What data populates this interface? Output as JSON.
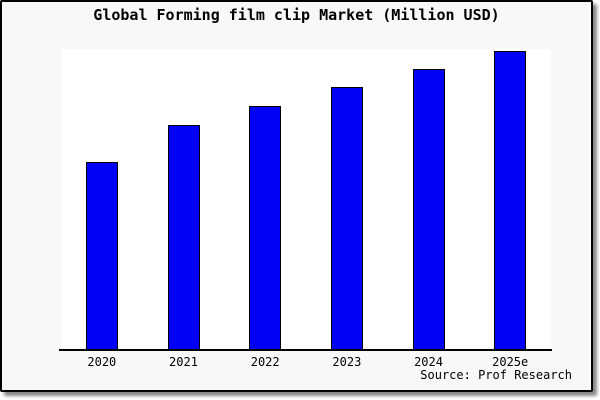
{
  "chart": {
    "title": "Global Forming film clip Market (Million USD)",
    "source": "Source: Prof Research",
    "colors": {
      "bar": "#0000f5",
      "bar_border": "#000000",
      "card_background": "#f8f8f8",
      "plot_background": "#ffffff",
      "axis": "#000000",
      "text": "#000000"
    }
  },
  "chart_data": {
    "type": "bar",
    "title": "Global Forming film clip Market (Million USD)",
    "categories": [
      "2020",
      "2021",
      "2022",
      "2023",
      "2024",
      "2025e"
    ],
    "values": [
      62.9,
      75.3,
      81.6,
      88.0,
      94.0,
      100.0
    ],
    "value_scale": "relative index; no y-axis labels shown in chart, values normalized to 2025e = 100",
    "xlabel": "",
    "ylabel": "",
    "ylim": [
      0,
      100
    ],
    "grid": false,
    "legend": false,
    "annotations": [
      "Source: Prof Research"
    ]
  }
}
